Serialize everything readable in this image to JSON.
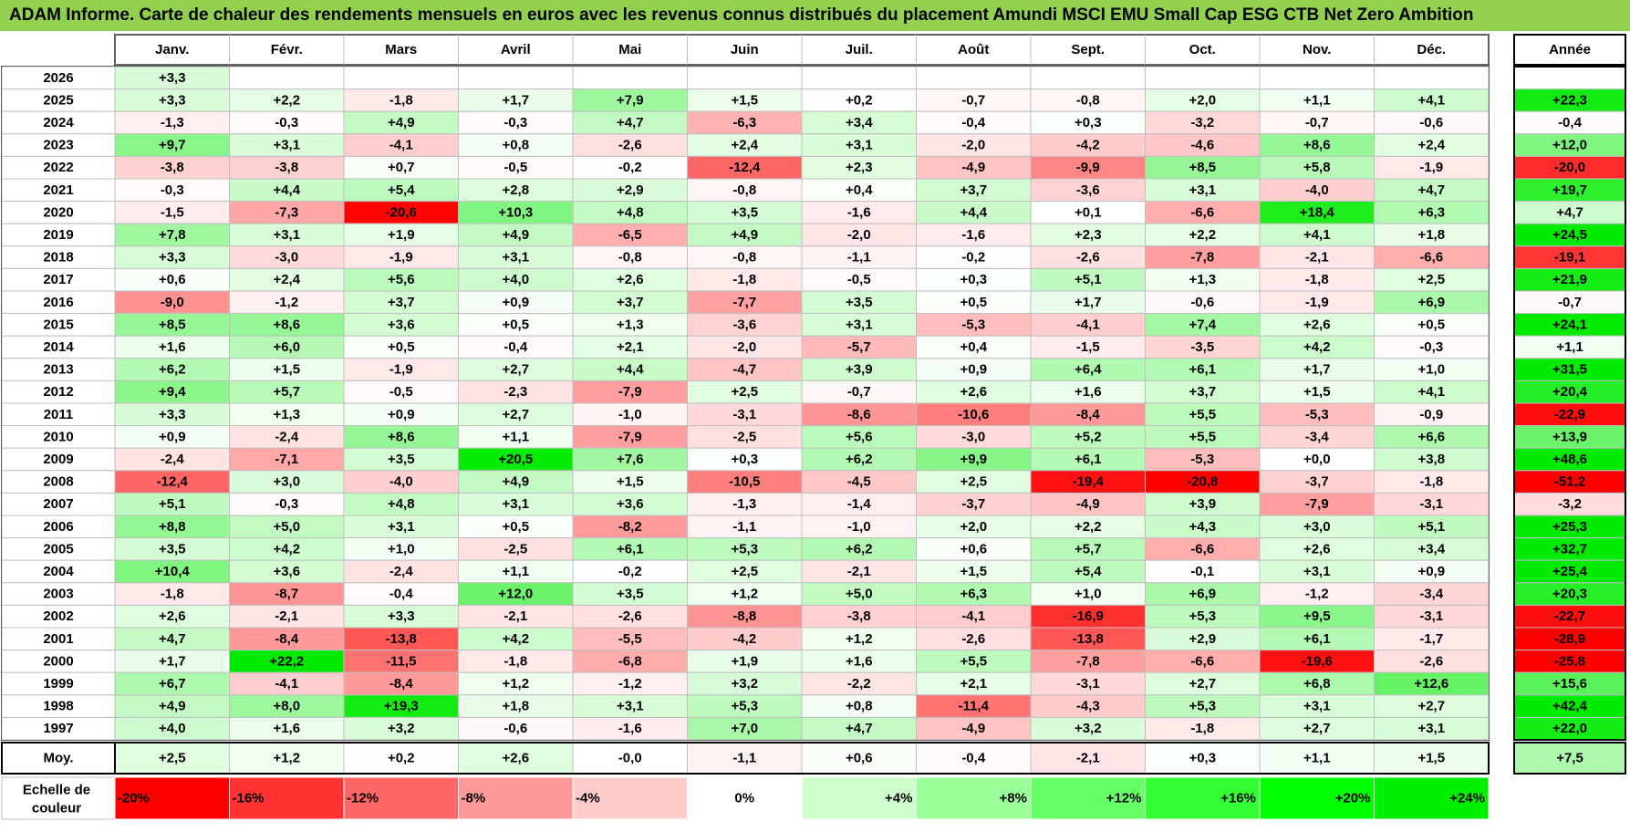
{
  "title": "ADAM Informe. Carte de chaleur des rendements mensuels en euros avec les revenus connus distribués du placement Amundi MSCI EMU Small Cap ESG CTB Net Zero Ambition",
  "chart_data": {
    "type": "heatmap",
    "months": [
      "Janv.",
      "Févr.",
      "Mars",
      "Avril",
      "Mai",
      "Juin",
      "Juil.",
      "Août",
      "Sept.",
      "Oct.",
      "Nov.",
      "Déc."
    ],
    "annual_header": "Année",
    "rows": [
      {
        "year": "2026",
        "values": [
          "+3,3",
          "",
          "",
          "",
          "",
          "",
          "",
          "",
          "",
          "",
          "",
          ""
        ],
        "annual": ""
      },
      {
        "year": "2025",
        "values": [
          "+3,3",
          "+2,2",
          "-1,8",
          "+1,7",
          "+7,9",
          "+1,5",
          "+0,2",
          "-0,7",
          "-0,8",
          "+2,0",
          "+1,1",
          "+4,1"
        ],
        "annual": "+22,3"
      },
      {
        "year": "2024",
        "values": [
          "-1,3",
          "-0,3",
          "+4,9",
          "-0,3",
          "+4,7",
          "-6,3",
          "+3,4",
          "-0,4",
          "+0,3",
          "-3,2",
          "-0,7",
          "-0,6"
        ],
        "annual": "-0,4"
      },
      {
        "year": "2023",
        "values": [
          "+9,7",
          "+3,1",
          "-4,1",
          "+0,8",
          "-2,6",
          "+2,4",
          "+3,1",
          "-2,0",
          "-4,2",
          "-4,6",
          "+8,6",
          "+2,4"
        ],
        "annual": "+12,0"
      },
      {
        "year": "2022",
        "values": [
          "-3,8",
          "-3,8",
          "+0,7",
          "-0,5",
          "-0,2",
          "-12,4",
          "+2,3",
          "-4,9",
          "-9,9",
          "+8,5",
          "+5,8",
          "-1,9"
        ],
        "annual": "-20,0"
      },
      {
        "year": "2021",
        "values": [
          "-0,3",
          "+4,4",
          "+5,4",
          "+2,8",
          "+2,9",
          "-0,8",
          "+0,4",
          "+3,7",
          "-3,6",
          "+3,1",
          "-4,0",
          "+4,7"
        ],
        "annual": "+19,7"
      },
      {
        "year": "2020",
        "values": [
          "-1,5",
          "-7,3",
          "-20,6",
          "+10,3",
          "+4,8",
          "+3,5",
          "-1,6",
          "+4,4",
          "+0,1",
          "-6,6",
          "+18,4",
          "+6,3"
        ],
        "annual": "+4,7"
      },
      {
        "year": "2019",
        "values": [
          "+7,8",
          "+3,1",
          "+1,9",
          "+4,9",
          "-6,5",
          "+4,9",
          "-2,0",
          "-1,6",
          "+2,3",
          "+2,2",
          "+4,1",
          "+1,8"
        ],
        "annual": "+24,5"
      },
      {
        "year": "2018",
        "values": [
          "+3,3",
          "-3,0",
          "-1,9",
          "+3,1",
          "-0,8",
          "-0,8",
          "-1,1",
          "-0,2",
          "-2,6",
          "-7,8",
          "-2,1",
          "-6,6"
        ],
        "annual": "-19,1"
      },
      {
        "year": "2017",
        "values": [
          "+0,6",
          "+2,4",
          "+5,6",
          "+4,0",
          "+2,6",
          "-1,8",
          "-0,5",
          "+0,3",
          "+5,1",
          "+1,3",
          "-1,8",
          "+2,5"
        ],
        "annual": "+21,9"
      },
      {
        "year": "2016",
        "values": [
          "-9,0",
          "-1,2",
          "+3,7",
          "+0,9",
          "+3,7",
          "-7,7",
          "+3,5",
          "+0,5",
          "+1,7",
          "-0,6",
          "-1,9",
          "+6,9"
        ],
        "annual": "-0,7"
      },
      {
        "year": "2015",
        "values": [
          "+8,5",
          "+8,6",
          "+3,6",
          "+0,5",
          "+1,3",
          "-3,6",
          "+3,1",
          "-5,3",
          "-4,1",
          "+7,4",
          "+2,6",
          "+0,5"
        ],
        "annual": "+24,1"
      },
      {
        "year": "2014",
        "values": [
          "+1,6",
          "+6,0",
          "+0,5",
          "-0,4",
          "+2,1",
          "-2,0",
          "-5,7",
          "+0,4",
          "-1,5",
          "-3,5",
          "+4,2",
          "-0,3"
        ],
        "annual": "+1,1"
      },
      {
        "year": "2013",
        "values": [
          "+6,2",
          "+1,5",
          "-1,9",
          "+2,7",
          "+4,4",
          "-4,7",
          "+3,9",
          "+0,9",
          "+6,4",
          "+6,1",
          "+1,7",
          "+1,0"
        ],
        "annual": "+31,5"
      },
      {
        "year": "2012",
        "values": [
          "+9,4",
          "+5,7",
          "-0,5",
          "-2,3",
          "-7,9",
          "+2,5",
          "-0,7",
          "+2,6",
          "+1,6",
          "+3,7",
          "+1,5",
          "+4,1"
        ],
        "annual": "+20,4"
      },
      {
        "year": "2011",
        "values": [
          "+3,3",
          "+1,3",
          "+0,9",
          "+2,7",
          "-1,0",
          "-3,1",
          "-8,6",
          "-10,6",
          "-8,4",
          "+5,5",
          "-5,3",
          "-0,9"
        ],
        "annual": "-22,9"
      },
      {
        "year": "2010",
        "values": [
          "+0,9",
          "-2,4",
          "+8,6",
          "+1,1",
          "-7,9",
          "-2,5",
          "+5,6",
          "-3,0",
          "+5,2",
          "+5,5",
          "-3,4",
          "+6,6"
        ],
        "annual": "+13,9"
      },
      {
        "year": "2009",
        "values": [
          "-2,4",
          "-7,1",
          "+3,5",
          "+20,5",
          "+7,6",
          "+0,3",
          "+6,2",
          "+9,9",
          "+6,1",
          "-5,3",
          "+0,0",
          "+3,8"
        ],
        "annual": "+48,6"
      },
      {
        "year": "2008",
        "values": [
          "-12,4",
          "+3,0",
          "-4,0",
          "+4,9",
          "+1,5",
          "-10,5",
          "-4,5",
          "+2,5",
          "-19,4",
          "-20,8",
          "-3,7",
          "-1,8"
        ],
        "annual": "-51,2"
      },
      {
        "year": "2007",
        "values": [
          "+5,1",
          "-0,3",
          "+4,8",
          "+3,1",
          "+3,6",
          "-1,3",
          "-1,4",
          "-3,7",
          "-4,9",
          "+3,9",
          "-7,9",
          "-3,1"
        ],
        "annual": "-3,2"
      },
      {
        "year": "2006",
        "values": [
          "+8,8",
          "+5,0",
          "+3,1",
          "+0,5",
          "-8,2",
          "-1,1",
          "-1,0",
          "+2,0",
          "+2,2",
          "+4,3",
          "+3,0",
          "+5,1"
        ],
        "annual": "+25,3"
      },
      {
        "year": "2005",
        "values": [
          "+3,5",
          "+4,2",
          "+1,0",
          "-2,5",
          "+6,1",
          "+5,3",
          "+6,2",
          "+0,6",
          "+5,7",
          "-6,6",
          "+2,6",
          "+3,4"
        ],
        "annual": "+32,7"
      },
      {
        "year": "2004",
        "values": [
          "+10,4",
          "+3,6",
          "-2,4",
          "+1,1",
          "-0,2",
          "+2,5",
          "-2,1",
          "+1,5",
          "+5,4",
          "-0,1",
          "+3,1",
          "+0,9"
        ],
        "annual": "+25,4"
      },
      {
        "year": "2003",
        "values": [
          "-1,8",
          "-8,7",
          "-0,4",
          "+12,0",
          "+3,5",
          "+1,2",
          "+5,0",
          "+6,3",
          "+1,0",
          "+6,9",
          "-1,2",
          "-3,4"
        ],
        "annual": "+20,3"
      },
      {
        "year": "2002",
        "values": [
          "+2,6",
          "-2,1",
          "+3,3",
          "-2,1",
          "-2,6",
          "-8,8",
          "-3,8",
          "-4,1",
          "-16,9",
          "+5,3",
          "+9,5",
          "-3,1"
        ],
        "annual": "-22,7"
      },
      {
        "year": "2001",
        "values": [
          "+4,7",
          "-8,4",
          "-13,8",
          "+4,2",
          "-5,5",
          "-4,2",
          "+1,2",
          "-2,6",
          "-13,8",
          "+2,9",
          "+6,1",
          "-1,7"
        ],
        "annual": "-28,9"
      },
      {
        "year": "2000",
        "values": [
          "+1,7",
          "+22,2",
          "-11,5",
          "-1,8",
          "-6,8",
          "+1,9",
          "+1,6",
          "+5,5",
          "-7,8",
          "-6,6",
          "-19,6",
          "-2,6"
        ],
        "annual": "-25,8"
      },
      {
        "year": "1999",
        "values": [
          "+6,7",
          "-4,1",
          "-8,4",
          "+1,2",
          "-1,2",
          "+3,2",
          "-2,2",
          "+2,1",
          "-3,1",
          "+2,7",
          "+6,8",
          "+12,6"
        ],
        "annual": "+15,6"
      },
      {
        "year": "1998",
        "values": [
          "+4,9",
          "+8,0",
          "+19,3",
          "+1,8",
          "+3,1",
          "+5,3",
          "+0,8",
          "-11,4",
          "-4,3",
          "+5,3",
          "+3,1",
          "+2,7"
        ],
        "annual": "+42,4"
      },
      {
        "year": "1997",
        "values": [
          "+4,0",
          "+1,6",
          "+3,2",
          "-0,6",
          "-1,6",
          "+7,0",
          "+4,7",
          "-4,9",
          "+3,2",
          "-1,8",
          "+2,7",
          "+3,1"
        ],
        "annual": "+22,0"
      }
    ],
    "average": {
      "label": "Moy.",
      "values": [
        "+2,5",
        "+1,2",
        "+0,2",
        "+2,6",
        "-0,0",
        "-1,1",
        "+0,6",
        "-0,4",
        "-2,1",
        "+0,3",
        "+1,1",
        "+1,5"
      ],
      "annual": "+7,5"
    },
    "scale": {
      "label_line1": "Echelle de",
      "label_line2": "couleur",
      "steps": [
        {
          "label": "-20%",
          "color": "#ff0000"
        },
        {
          "label": "-16%",
          "color": "#ff3333"
        },
        {
          "label": "-12%",
          "color": "#ff6666"
        },
        {
          "label": "-8%",
          "color": "#ff9999"
        },
        {
          "label": "-4%",
          "color": "#ffcccc"
        },
        {
          "label": "0%",
          "color": "#ffffff"
        },
        {
          "label": "+4%",
          "color": "#ccffcc"
        },
        {
          "label": "+8%",
          "color": "#99ff99"
        },
        {
          "label": "+12%",
          "color": "#66ff66"
        },
        {
          "label": "+16%",
          "color": "#33ff33"
        },
        {
          "label": "+20%",
          "color": "#00ff00"
        },
        {
          "label": "+24%",
          "color": "#00ee00"
        }
      ]
    },
    "colors": {
      "title_bg": "#92d050",
      "negative": "#ff0000",
      "positive": "#00ff00",
      "neutral": "#ffffff"
    }
  }
}
